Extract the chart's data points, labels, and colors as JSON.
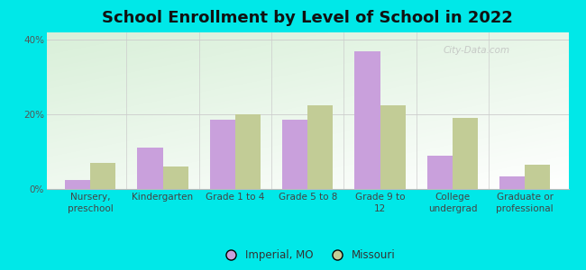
{
  "title": "School Enrollment by Level of School in 2022",
  "categories": [
    "Nursery,\npreschool",
    "Kindergarten",
    "Grade 1 to 4",
    "Grade 5 to 8",
    "Grade 9 to\n12",
    "College\nundergrad",
    "Graduate or\nprofessional"
  ],
  "imperial_mo": [
    2.5,
    11.0,
    18.5,
    18.5,
    37.0,
    9.0,
    3.5
  ],
  "missouri": [
    7.0,
    6.0,
    20.0,
    22.5,
    22.5,
    19.0,
    6.5
  ],
  "imperial_color": "#c9a0dc",
  "missouri_color": "#c2cc96",
  "background_color": "#00e8e8",
  "ylim": [
    0,
    42
  ],
  "yticks": [
    0,
    20,
    40
  ],
  "ytick_labels": [
    "0%",
    "20%",
    "40%"
  ],
  "bar_width": 0.35,
  "legend_imperial": "Imperial, MO",
  "legend_missouri": "Missouri",
  "watermark": "City-Data.com",
  "title_fontsize": 13,
  "tick_fontsize": 7.5
}
